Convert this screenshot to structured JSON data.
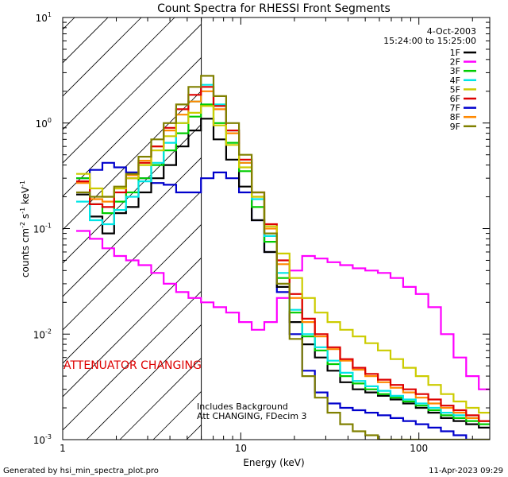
{
  "chart_data": {
    "type": "line",
    "title": "Count Spectra for RHESSI Front Segments",
    "xlabel": "Energy (keV)",
    "ylabel_main": "counts cm",
    "ylabel_sup1": "-2",
    "ylabel_mid": " s",
    "ylabel_sup2": "-1",
    "ylabel_unit": " keV",
    "ylabel_sup3": "-1",
    "xscale": "log",
    "yscale": "log",
    "xlim": [
      1,
      250
    ],
    "ylim": [
      0.001,
      10
    ],
    "x_tick_labels": [
      "1",
      "10",
      "100"
    ],
    "y_tick_labels": [
      {
        "base": "10",
        "exp": "-3",
        "value": 0.001
      },
      {
        "base": "10",
        "exp": "-2",
        "value": 0.01
      },
      {
        "base": "10",
        "exp": "-1",
        "value": 0.1
      },
      {
        "base": "10",
        "exp": "0",
        "value": 1
      },
      {
        "base": "10",
        "exp": "1",
        "value": 10
      }
    ],
    "date": "4-Oct-2003",
    "time_range": "15:24:00 to 15:25:00",
    "attenuator_label": "ATTENUATOR CHANGING",
    "attenuator_color": "#dd0000",
    "hatched_region_keV": [
      1,
      6
    ],
    "note_line1": "Includes Background",
    "note_line2": "Att CHANGING, FDecim 3",
    "x": [
      1.3,
      1.55,
      1.8,
      2.1,
      2.45,
      2.9,
      3.4,
      4.0,
      4.7,
      5.5,
      6.5,
      7.6,
      9.0,
      10.6,
      12.5,
      14.7,
      17.3,
      20.4,
      24.0,
      28.3,
      33.3,
      39.2,
      46.1,
      54.3,
      63.9,
      75.2,
      88.5,
      104.2,
      122.6,
      144.3,
      169.9,
      200.0,
      235.4
    ],
    "series": [
      {
        "name": "1F",
        "color": "#000000",
        "values": [
          0.21,
          0.13,
          0.09,
          0.14,
          0.16,
          0.22,
          0.3,
          0.4,
          0.6,
          0.85,
          1.1,
          0.7,
          0.45,
          0.25,
          0.12,
          0.06,
          0.028,
          0.013,
          0.008,
          0.006,
          0.0045,
          0.0035,
          0.003,
          0.0028,
          0.0026,
          0.0024,
          0.0022,
          0.002,
          0.0018,
          0.0016,
          0.0015,
          0.0014,
          0.0013
        ]
      },
      {
        "name": "2F",
        "color": "#ff00ff",
        "values": [
          0.095,
          0.08,
          0.065,
          0.055,
          0.05,
          0.045,
          0.038,
          0.03,
          0.025,
          0.022,
          0.02,
          0.018,
          0.016,
          0.013,
          0.011,
          0.013,
          0.022,
          0.04,
          0.055,
          0.052,
          0.048,
          0.045,
          0.042,
          0.04,
          0.038,
          0.034,
          0.028,
          0.024,
          0.018,
          0.01,
          0.006,
          0.004,
          0.003
        ]
      },
      {
        "name": "3F",
        "color": "#00cc00",
        "values": [
          0.3,
          0.17,
          0.14,
          0.18,
          0.22,
          0.3,
          0.4,
          0.55,
          0.8,
          1.15,
          1.5,
          1.0,
          0.65,
          0.35,
          0.16,
          0.075,
          0.034,
          0.016,
          0.0095,
          0.007,
          0.0052,
          0.004,
          0.0034,
          0.003,
          0.0027,
          0.0025,
          0.0023,
          0.0021,
          0.0019,
          0.0017,
          0.0016,
          0.0015,
          0.0014
        ]
      },
      {
        "name": "4F",
        "color": "#00e5e5",
        "values": [
          0.18,
          0.12,
          0.11,
          0.15,
          0.2,
          0.28,
          0.42,
          0.65,
          1.0,
          1.6,
          2.3,
          1.5,
          0.85,
          0.42,
          0.19,
          0.085,
          0.038,
          0.017,
          0.01,
          0.0075,
          0.0056,
          0.0043,
          0.0036,
          0.0032,
          0.0029,
          0.0026,
          0.0024,
          0.0022,
          0.002,
          0.0018,
          0.0017,
          0.0016,
          0.0015
        ]
      },
      {
        "name": "5F",
        "color": "#cccc00",
        "values": [
          0.33,
          0.24,
          0.2,
          0.24,
          0.3,
          0.4,
          0.55,
          0.75,
          1.0,
          1.25,
          1.45,
          0.95,
          0.62,
          0.38,
          0.2,
          0.105,
          0.058,
          0.034,
          0.022,
          0.016,
          0.013,
          0.011,
          0.0095,
          0.0082,
          0.007,
          0.0058,
          0.0048,
          0.004,
          0.0033,
          0.0027,
          0.0023,
          0.002,
          0.0018
        ]
      },
      {
        "name": "6F",
        "color": "#dd0000",
        "values": [
          0.28,
          0.17,
          0.16,
          0.22,
          0.3,
          0.42,
          0.6,
          0.9,
          1.35,
          1.85,
          2.2,
          1.45,
          0.85,
          0.45,
          0.22,
          0.11,
          0.05,
          0.024,
          0.014,
          0.01,
          0.0075,
          0.0058,
          0.0048,
          0.0042,
          0.0037,
          0.0033,
          0.003,
          0.0027,
          0.0024,
          0.0021,
          0.0019,
          0.0017,
          0.0015
        ]
      },
      {
        "name": "7F",
        "color": "#0000cc",
        "values": [
          0.3,
          0.36,
          0.42,
          0.38,
          0.34,
          0.3,
          0.27,
          0.26,
          0.22,
          0.22,
          0.3,
          0.34,
          0.3,
          0.22,
          0.12,
          0.06,
          0.025,
          0.01,
          0.0045,
          0.0028,
          0.0022,
          0.002,
          0.0019,
          0.0018,
          0.0017,
          0.0016,
          0.0015,
          0.0014,
          0.0013,
          0.0012,
          0.0011,
          0.001,
          0.001
        ]
      },
      {
        "name": "8F",
        "color": "#ff8800",
        "values": [
          0.27,
          0.19,
          0.18,
          0.24,
          0.32,
          0.44,
          0.6,
          0.85,
          1.2,
          1.6,
          2.0,
          1.35,
          0.8,
          0.42,
          0.2,
          0.1,
          0.046,
          0.022,
          0.013,
          0.0095,
          0.0072,
          0.0056,
          0.0046,
          0.004,
          0.0035,
          0.0031,
          0.0028,
          0.0025,
          0.0022,
          0.002,
          0.0018,
          0.0016,
          0.0015
        ]
      },
      {
        "name": "9F",
        "color": "#808000",
        "values": [
          0.22,
          0.2,
          0.2,
          0.25,
          0.33,
          0.48,
          0.7,
          1.0,
          1.5,
          2.2,
          2.8,
          1.8,
          1.0,
          0.5,
          0.22,
          0.09,
          0.03,
          0.009,
          0.004,
          0.0025,
          0.0018,
          0.0014,
          0.0012,
          0.0011,
          0.001,
          0.001,
          0.001,
          0.001,
          0.001,
          0.001,
          0.001,
          0.001,
          0.001
        ]
      }
    ]
  },
  "footer": {
    "generated_by": "Generated by hsi_min_spectra_plot.pro",
    "timestamp": "11-Apr-2023 09:29"
  }
}
